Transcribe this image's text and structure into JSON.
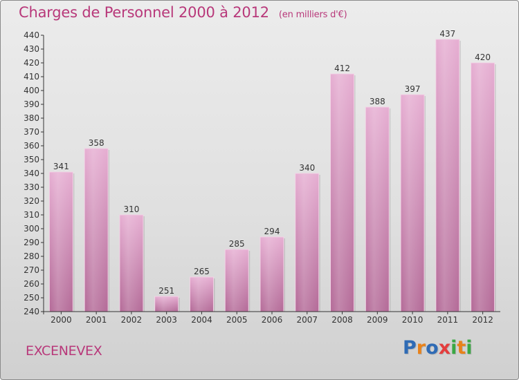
{
  "header": {
    "title": "Charges de Personnel 2000 à 2012",
    "unit": "(en milliers d'€)"
  },
  "commune": "EXCENEVEX",
  "logo": {
    "text": "Proxiti",
    "colors": [
      "#2f6bb5",
      "#e8821a",
      "#2f6bb5",
      "#e43d3d",
      "#3aa844",
      "#e8821a",
      "#3aa844"
    ]
  },
  "colors": {
    "title": "#b8387a",
    "bar_top": "#e6aed2",
    "bar_bottom": "#b46b98",
    "axis": "#333333"
  },
  "chart_data": {
    "type": "bar",
    "categories": [
      "2000",
      "2001",
      "2002",
      "2003",
      "2004",
      "2005",
      "2006",
      "2007",
      "2008",
      "2009",
      "2010",
      "2011",
      "2012"
    ],
    "values": [
      341,
      358,
      310,
      251,
      265,
      285,
      294,
      340,
      412,
      388,
      397,
      437,
      420
    ],
    "ylim": [
      240,
      440
    ],
    "yticks": [
      240,
      250,
      260,
      270,
      280,
      290,
      300,
      310,
      320,
      330,
      340,
      350,
      360,
      370,
      380,
      390,
      400,
      410,
      420,
      430,
      440
    ],
    "grid": false
  }
}
